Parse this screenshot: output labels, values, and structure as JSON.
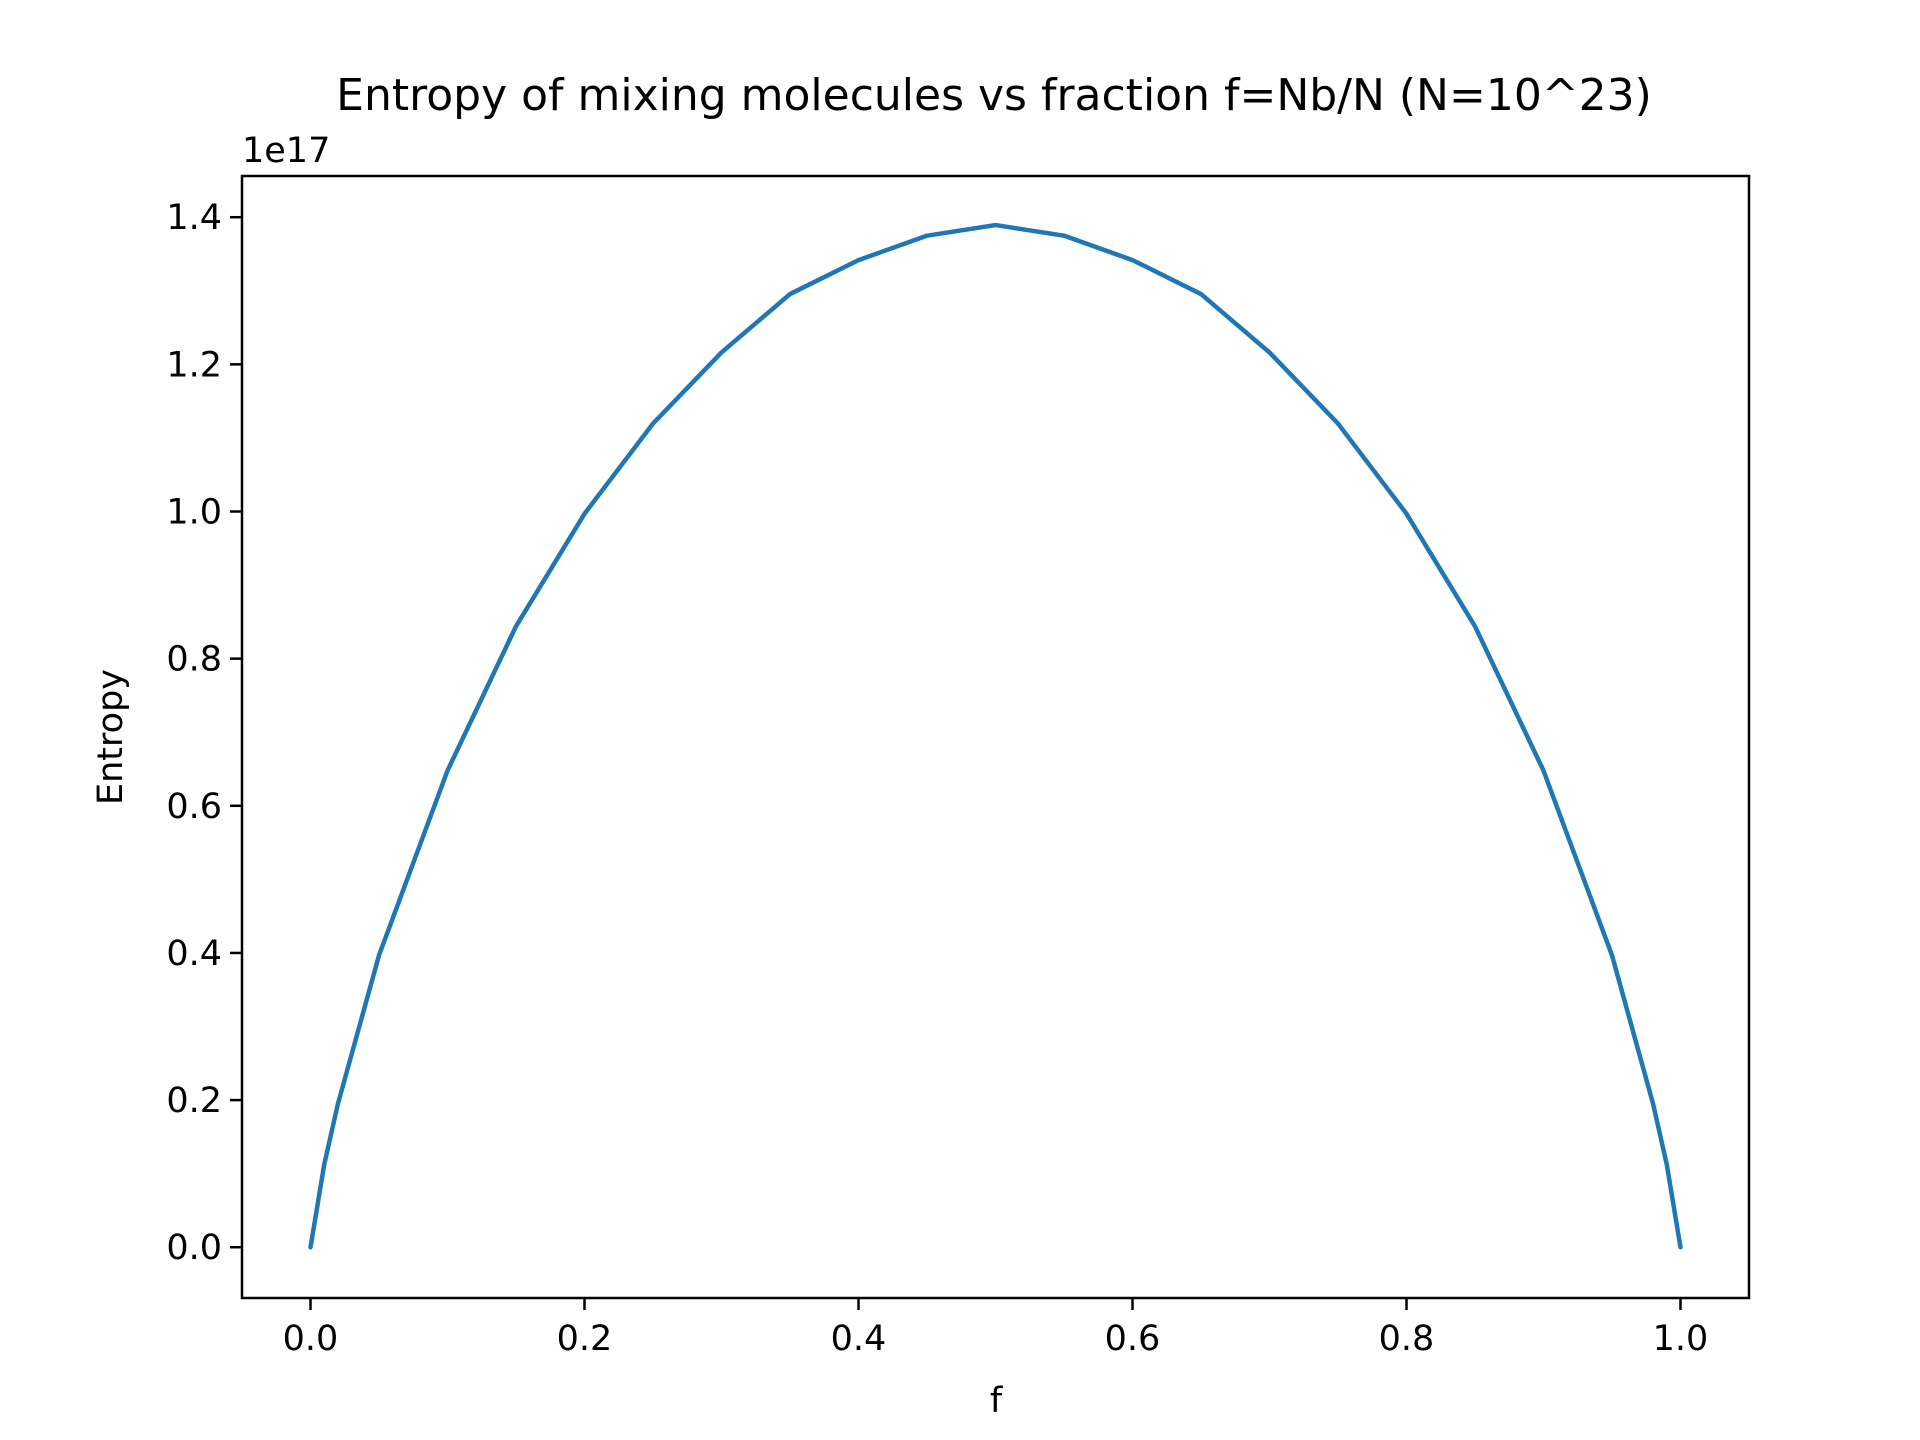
{
  "chart_data": {
    "type": "line",
    "title": "Entropy of mixing molecules vs fraction f=Nb/N (N=10^23)",
    "xlabel": "f",
    "ylabel": "Entropy",
    "y_offset_label": "1e17",
    "xlim": [
      -0.05,
      1.05
    ],
    "ylim": [
      -0.069,
      1.456
    ],
    "ylim_units": "1e17",
    "xticks": [
      0.0,
      0.2,
      0.4,
      0.6,
      0.8,
      1.0
    ],
    "xtick_labels": [
      "0.0",
      "0.2",
      "0.4",
      "0.6",
      "0.8",
      "1.0"
    ],
    "yticks": [
      0.0,
      0.2,
      0.4,
      0.6,
      0.8,
      1.0,
      1.2,
      1.4
    ],
    "ytick_labels": [
      "0.0",
      "0.2",
      "0.4",
      "0.6",
      "0.8",
      "1.0",
      "1.2",
      "1.4"
    ],
    "grid": false,
    "series": [
      {
        "color": "#1f77b4",
        "x": [
          0.0,
          0.01,
          0.02,
          0.05,
          0.1,
          0.15,
          0.2,
          0.25,
          0.3,
          0.35,
          0.4,
          0.45,
          0.5,
          0.55,
          0.6,
          0.65,
          0.7,
          0.75,
          0.8,
          0.85,
          0.9,
          0.95,
          0.98,
          0.99,
          1.0
        ],
        "y": [
          0.0,
          0.0778,
          0.135,
          0.275,
          0.449,
          0.585,
          0.691,
          0.776,
          0.843,
          0.898,
          0.93,
          0.953,
          0.963,
          0.953,
          0.93,
          0.898,
          0.843,
          0.776,
          0.691,
          0.585,
          0.449,
          0.275,
          0.135,
          0.0778,
          0.0
        ],
        "y_units": "1e17 / 0.693 scale: multiply by 1.443 to get displayed value"
      }
    ]
  }
}
